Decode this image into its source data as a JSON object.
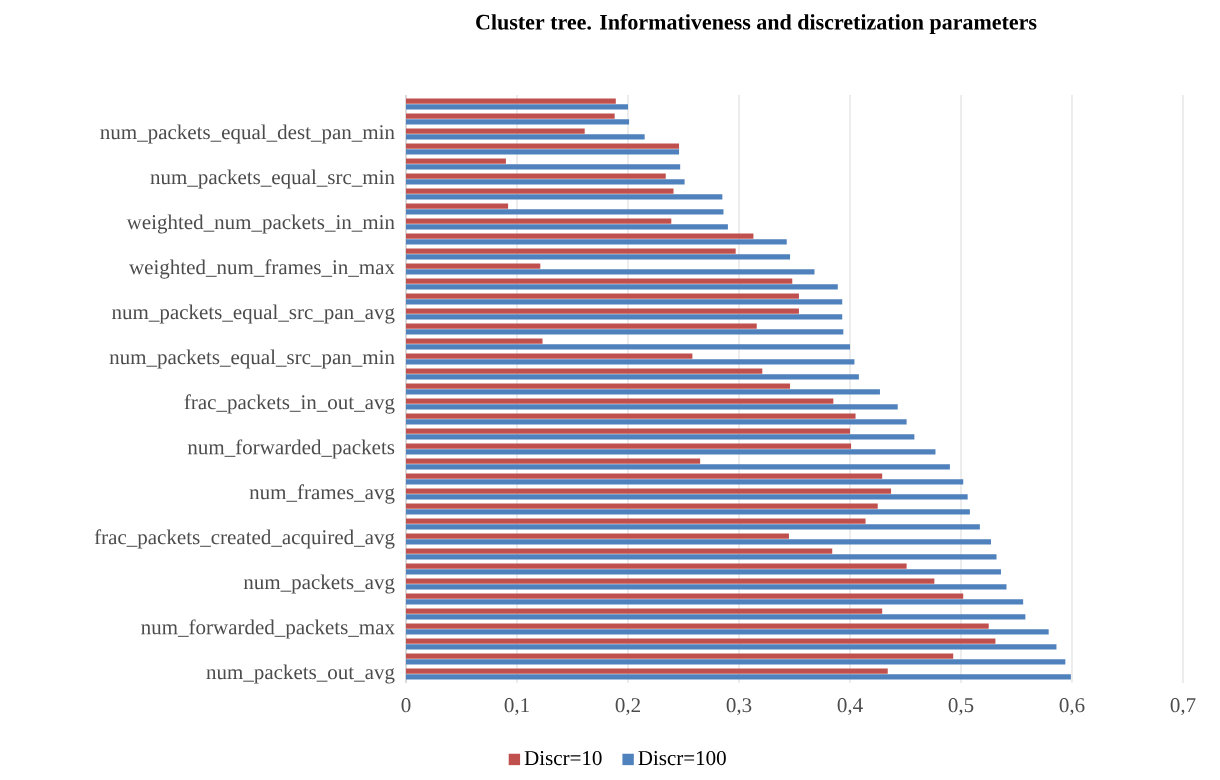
{
  "chart_data": {
    "type": "bar",
    "orientation": "horizontal",
    "title": "Cluster tree. Informativeness and discretization parameters",
    "categories": [
      null,
      null,
      "num_packets_equal_dest_pan_min",
      null,
      null,
      "num_packets_equal_src_min",
      null,
      null,
      "weighted_num_packets_in_min",
      null,
      null,
      "weighted_num_frames_in_max",
      null,
      null,
      "num_packets_equal_src_pan_avg",
      null,
      null,
      "num_packets_equal_src_pan_min",
      null,
      null,
      "frac_packets_in_out_avg",
      null,
      null,
      "num_forwarded_packets",
      null,
      null,
      "num_frames_avg",
      null,
      null,
      "frac_packets_created_acquired_avg",
      null,
      null,
      "num_packets_avg",
      null,
      null,
      "num_forwarded_packets_max",
      null,
      null,
      "num_packets_out_avg"
    ],
    "series": [
      {
        "name": "Discr=10",
        "color": "#c0504d",
        "values": [
          0.189,
          0.188,
          0.161,
          0.246,
          0.09,
          0.234,
          0.241,
          0.092,
          0.239,
          0.313,
          0.297,
          0.121,
          0.348,
          0.354,
          0.354,
          0.316,
          0.123,
          0.258,
          0.321,
          0.346,
          0.385,
          0.405,
          0.4,
          0.401,
          0.265,
          0.429,
          0.437,
          0.425,
          0.414,
          0.345,
          0.384,
          0.451,
          0.476,
          0.502,
          0.429,
          0.525,
          0.531,
          0.493,
          0.434
        ]
      },
      {
        "name": "Discr=100",
        "color": "#4f81bd",
        "values": [
          0.2,
          0.201,
          0.215,
          0.246,
          0.247,
          0.251,
          0.285,
          0.286,
          0.29,
          0.343,
          0.346,
          0.368,
          0.389,
          0.393,
          0.393,
          0.394,
          0.4,
          0.404,
          0.408,
          0.427,
          0.443,
          0.451,
          0.458,
          0.477,
          0.49,
          0.502,
          0.506,
          0.508,
          0.517,
          0.527,
          0.532,
          0.536,
          0.541,
          0.556,
          0.558,
          0.579,
          0.586,
          0.594,
          0.599
        ]
      }
    ],
    "xlim": [
      0,
      0.7
    ],
    "xticks": [
      0,
      {
        "value": 0.1,
        "label": "0,1"
      },
      {
        "value": 0.2,
        "label": "0,2"
      },
      {
        "value": 0.3,
        "label": "0,3"
      },
      {
        "value": 0.4,
        "label": "0,4"
      },
      {
        "value": 0.5,
        "label": "0,5"
      },
      {
        "value": 0.6,
        "label": "0,6"
      },
      {
        "value": 0.7,
        "label": "0,7"
      }
    ],
    "grid": "x",
    "legend": "bottom"
  }
}
